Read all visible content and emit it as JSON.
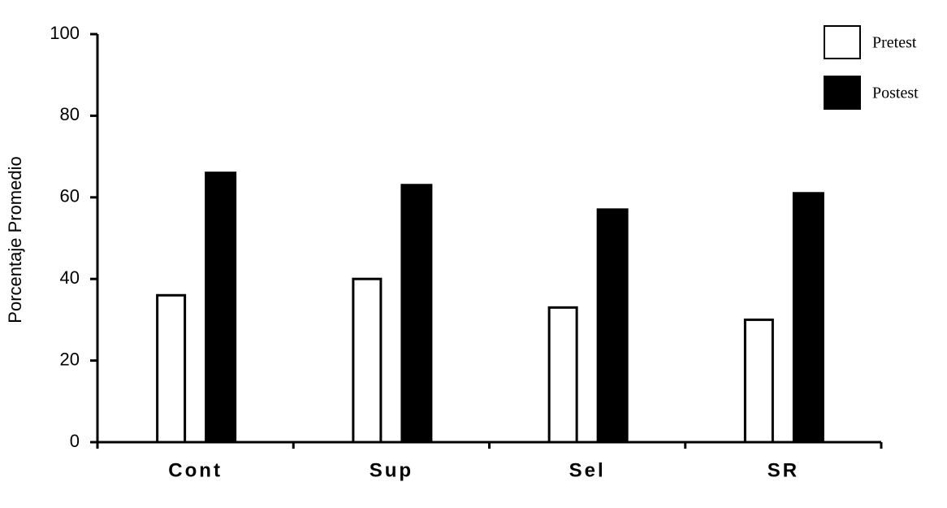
{
  "chart_data": {
    "type": "bar",
    "y_label": "Porcentaje Promedio",
    "categories": [
      "Cont",
      "Sup",
      "Sel",
      "SR"
    ],
    "series": [
      {
        "name": "Pretest",
        "color": "#ffffff",
        "values": [
          36,
          40,
          33,
          30
        ]
      },
      {
        "name": "Postest",
        "color": "#000000",
        "values": [
          66,
          63,
          57,
          61
        ]
      }
    ],
    "ylim": [
      0,
      100
    ],
    "yticks": [
      0,
      20,
      40,
      60,
      80,
      100
    ],
    "legend": "top-right",
    "grid": false
  }
}
